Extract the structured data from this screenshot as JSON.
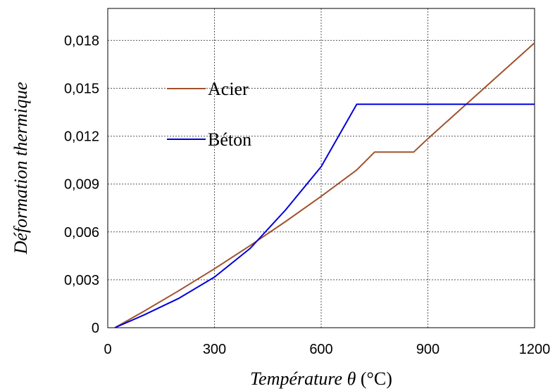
{
  "chart_data": {
    "type": "line",
    "title": "",
    "xlabel": "Température",
    "xlabel_symbol": "θ",
    "xlabel_unit": "(°C)",
    "ylabel": "Déformation thermique",
    "xlim": [
      0,
      1200
    ],
    "ylim": [
      0,
      0.02
    ],
    "xticks": [
      0,
      300,
      600,
      900,
      1200
    ],
    "xtick_labels": [
      "0",
      "300",
      "600",
      "900",
      "1200"
    ],
    "yticks": [
      0,
      0.003,
      0.006,
      0.009,
      0.012,
      0.015,
      0.018
    ],
    "ytick_labels": [
      "0",
      "0,003",
      "0,006",
      "0,009",
      "0,012",
      "0,015",
      "0,018"
    ],
    "grid": true,
    "legend_position": "upper-left",
    "series": [
      {
        "name": "Acier",
        "color": "#a0522d",
        "x": [
          20,
          100,
          200,
          300,
          400,
          500,
          600,
          700,
          750,
          860,
          900,
          1000,
          1100,
          1200
        ],
        "y": [
          0,
          0.00101,
          0.00232,
          0.00369,
          0.00514,
          0.00665,
          0.00823,
          0.00988,
          0.011,
          0.011,
          0.01184,
          0.01384,
          0.01584,
          0.01784
        ]
      },
      {
        "name": "Béton",
        "color": "#0000dd",
        "x": [
          20,
          100,
          200,
          300,
          400,
          500,
          600,
          700,
          800,
          900,
          1000,
          1100,
          1200
        ],
        "y": [
          0,
          0.00078,
          0.00184,
          0.00317,
          0.00496,
          0.00738,
          0.01009,
          0.014,
          0.014,
          0.014,
          0.014,
          0.014,
          0.014
        ]
      }
    ]
  }
}
